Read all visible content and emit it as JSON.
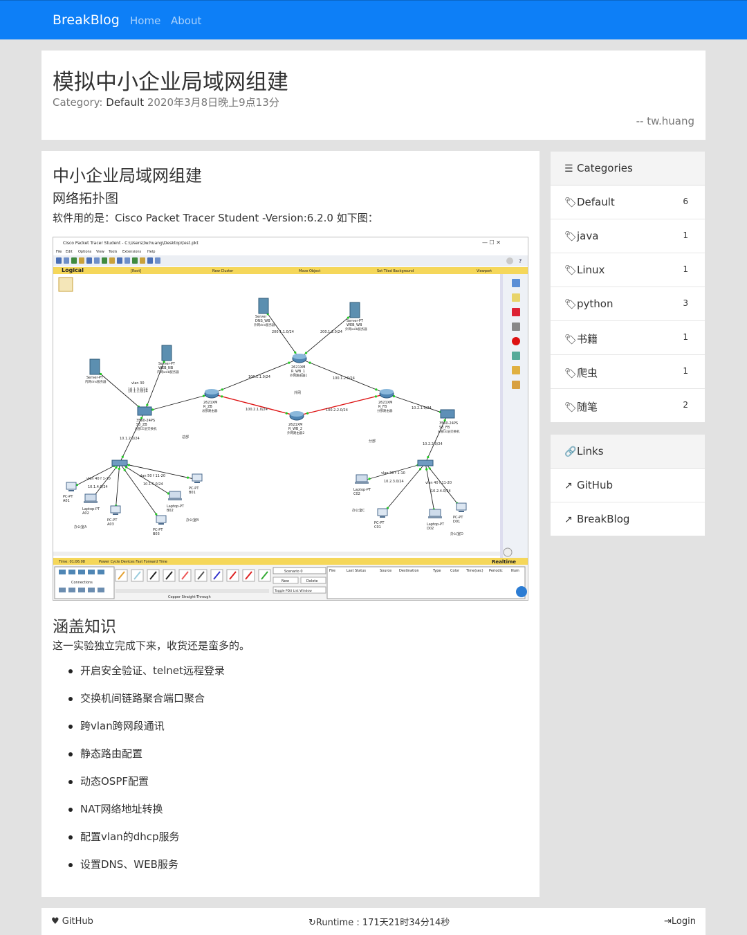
{
  "nav": {
    "brand": "BreakBlog",
    "links": [
      "Home",
      "About"
    ]
  },
  "post_header": {
    "title": "模拟中小企业局域网组建",
    "category_label": "Category:",
    "category": "Default",
    "date": "2020年3月8日晚上9点13分",
    "author": "-- tw.huang"
  },
  "content": {
    "heading": "中小企业局域网组建",
    "subheading": "网络拓扑图",
    "software_text": "软件用的是：Cisco Packet Tracer Student -Version:6.2.0 如下图：",
    "knowledge_heading": "涵盖知识",
    "knowledge_intro": "这一实验独立完成下来，收货还是蛮多的。",
    "knowledge_items": [
      "开启安全验证、telnet远程登录",
      "交换机间链路聚合端口聚合",
      "跨vlan跨网段通讯",
      "静态路由配置",
      "动态OSPF配置",
      "NAT网络地址转换",
      "配置vlan的dhcp服务",
      "设置DNS、WEB服务"
    ]
  },
  "screenshot": {
    "window_title": "Cisco Packet Tracer Student - C:\\Users\\tw.huang\\Desktop\\test.pkt",
    "menus": [
      "File",
      "Edit",
      "Options",
      "View",
      "Tools",
      "Extensions",
      "Help"
    ],
    "topbar": [
      "Logical",
      "[Root]",
      "New Cluster",
      "Move Object",
      "Set Tiled Background",
      "Viewport"
    ],
    "status_time": "Time: 01:06:08",
    "status_actions": "Power Cycle Devices  Fast Forward Time",
    "mode": "Realtime",
    "scenario": "Scenario 0",
    "btn_new": "New",
    "btn_delete": "Delete",
    "btn_toggle": "Toggle PDU List Window",
    "fire_cols": [
      "Fire",
      "Last Status",
      "Source",
      "Destination",
      "Type",
      "Color",
      "Time(sec)",
      "Periodic",
      "Num"
    ],
    "connections_label": "Connections",
    "cable_label": "Copper Straight-Through",
    "nodes": [
      {
        "id": "dns",
        "label": "Server\nDNS_WB",
        "sub": "外网dns服务器"
      },
      {
        "id": "web",
        "label": "Server-PT\nWEB_WB",
        "sub": "外网web服务器"
      },
      {
        "id": "rwb1",
        "label": "2621XM\nR_WB_1",
        "sub": "外网路由器1"
      },
      {
        "id": "rzb",
        "label": "2621XM\nR_ZB",
        "sub": "总部路由器"
      },
      {
        "id": "rwb2",
        "label": "2621XM\nR_WB_2",
        "sub": "外网路由器2"
      },
      {
        "id": "rfb",
        "label": "2621XM\nR_FB",
        "sub": "分部路由器"
      },
      {
        "id": "server",
        "label": "Server-PT",
        "sub": "内网dns服务器"
      },
      {
        "id": "webnb",
        "label": "Server-PT\nWEB_NB",
        "sub": "内网web服务器"
      },
      {
        "id": "swzb",
        "label": "3560-24PS\nS3_ZB",
        "sub": "总部三层交换机"
      },
      {
        "id": "swfb",
        "label": "3560-24PS\nS3_FB",
        "sub": "分部三层交换机"
      },
      {
        "id": "a01",
        "label": "PC-PT\nA01"
      },
      {
        "id": "a02",
        "label": "Laptop-PT\nA02"
      },
      {
        "id": "a03",
        "label": "PC-PT\nA03"
      },
      {
        "id": "b01",
        "label": "PC-PT\nB01"
      },
      {
        "id": "b02",
        "label": "Laptop-PT\nB02"
      },
      {
        "id": "b03",
        "label": "PC-PT\nB03"
      },
      {
        "id": "c01",
        "label": "PC-PT\nC01"
      },
      {
        "id": "c02",
        "label": "Laptop-PT\nC02"
      },
      {
        "id": "d01",
        "label": "PC-PT\nD01"
      },
      {
        "id": "d02",
        "label": "Laptop-PT\nD02"
      }
    ],
    "net_labels": [
      "200.1.1.0/24",
      "200.1.2.0/24",
      "100.1.1.0/24",
      "100.1.2.0/24",
      "100.2.1.0/24",
      "100.2.2.0/24",
      "10.2.1.0/24",
      "10.1.1.0/24",
      "10.1.2.0/24",
      "10.2.2.0/24",
      "10.1.3.0/24",
      "vlan 30",
      "vlan 40 f 1-10",
      "10.1.4.0/24",
      "vlan 50 f 11-20",
      "10.1.5.0/24",
      "vlan 30 f 1-10",
      "10.2.3.0/24",
      "vlan 40 f 11-20",
      "10.2.4.0/24"
    ],
    "area_labels": [
      "外网",
      "总部",
      "分部",
      "办公室A",
      "办公室B",
      "办公室C",
      "办公室D"
    ]
  },
  "sidebar": {
    "categories_title": "Categories",
    "categories": [
      {
        "name": "Default",
        "count": "6"
      },
      {
        "name": "java",
        "count": "1"
      },
      {
        "name": "Linux",
        "count": "1"
      },
      {
        "name": "python",
        "count": "3"
      },
      {
        "name": "书籍",
        "count": "1"
      },
      {
        "name": "爬虫",
        "count": "1"
      },
      {
        "name": "随笔",
        "count": "2"
      }
    ],
    "links_title": "Links",
    "links": [
      "GitHub",
      "BreakBlog"
    ]
  },
  "footer": {
    "github": "GitHub",
    "runtime": "Runtime : 171天21时34分14秒",
    "login": "Login"
  }
}
